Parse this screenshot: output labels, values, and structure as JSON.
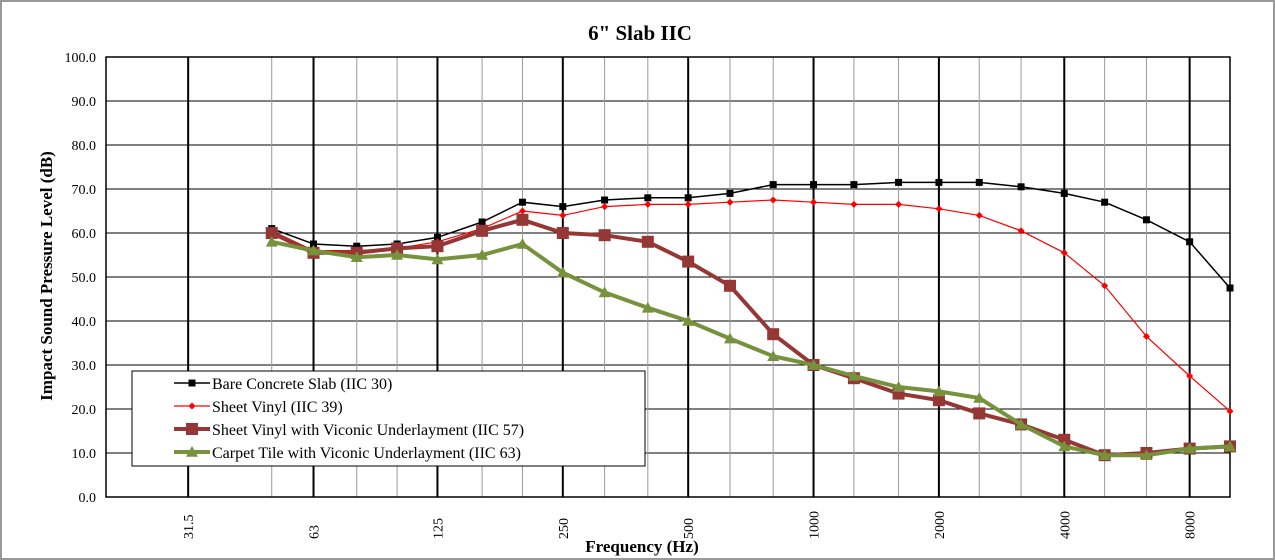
{
  "chart_data": {
    "type": "line",
    "title": "6\" Slab IIC",
    "xlabel": "Frequency (Hz)",
    "ylabel": "Impact Sound Pressure Level (dB)",
    "x_scale": "log",
    "xlim": [
      20,
      10000
    ],
    "ylim": [
      0,
      100
    ],
    "grid": true,
    "legend_position": "bottom-left",
    "y_ticks": [
      "0.0",
      "10.0",
      "20.0",
      "30.0",
      "40.0",
      "50.0",
      "60.0",
      "70.0",
      "80.0",
      "90.0",
      "100.0"
    ],
    "x_tick_labels": [
      "31.5",
      "63",
      "125",
      "250",
      "500",
      "1000",
      "2000",
      "4000",
      "8000"
    ],
    "x": [
      50,
      63,
      80,
      100,
      125,
      160,
      200,
      250,
      315,
      400,
      500,
      630,
      800,
      1000,
      1250,
      1600,
      2000,
      2500,
      3150,
      4000,
      5000,
      6300,
      8000,
      10000
    ],
    "series": [
      {
        "name": "Bare Concrete Slab  (IIC 30)",
        "color": "#000000",
        "marker": "square",
        "values": [
          61,
          57.5,
          57,
          57.5,
          59,
          62.5,
          67,
          66,
          67.5,
          68,
          68,
          69,
          71,
          71,
          71,
          71.5,
          71.5,
          71.5,
          70.5,
          69,
          67,
          63,
          58,
          47.5
        ]
      },
      {
        "name": "Sheet Vinyl  (IIC 39)",
        "color": "#ff0000",
        "marker": "diamond",
        "values": [
          60.5,
          56,
          56,
          56.5,
          58,
          61,
          65,
          64,
          66,
          66.5,
          66.5,
          67,
          67.5,
          67,
          66.5,
          66.5,
          65.5,
          64,
          60.5,
          55.5,
          48,
          36.5,
          27.5,
          19.5
        ]
      },
      {
        "name": "Sheet Vinyl with Viconic Underlayment (IIC 57)",
        "color": "#953735",
        "marker": "square",
        "values": [
          60,
          55.5,
          55.5,
          56.5,
          57,
          60.5,
          63,
          60,
          59.5,
          58,
          53.5,
          48,
          37,
          30,
          27,
          23.5,
          22,
          19,
          16.5,
          13,
          9.5,
          10,
          11,
          11.5
        ]
      },
      {
        "name": "Carpet Tile with Viconic Underlayment (IIC 63)",
        "color": "#76923c",
        "marker": "triangle",
        "values": [
          58,
          56,
          54.5,
          55,
          54,
          55,
          57.5,
          51,
          46.5,
          43,
          40,
          36,
          32,
          30,
          27.5,
          25,
          24,
          22.5,
          16.5,
          11.5,
          9.5,
          9.5,
          11,
          11.5
        ]
      }
    ]
  }
}
